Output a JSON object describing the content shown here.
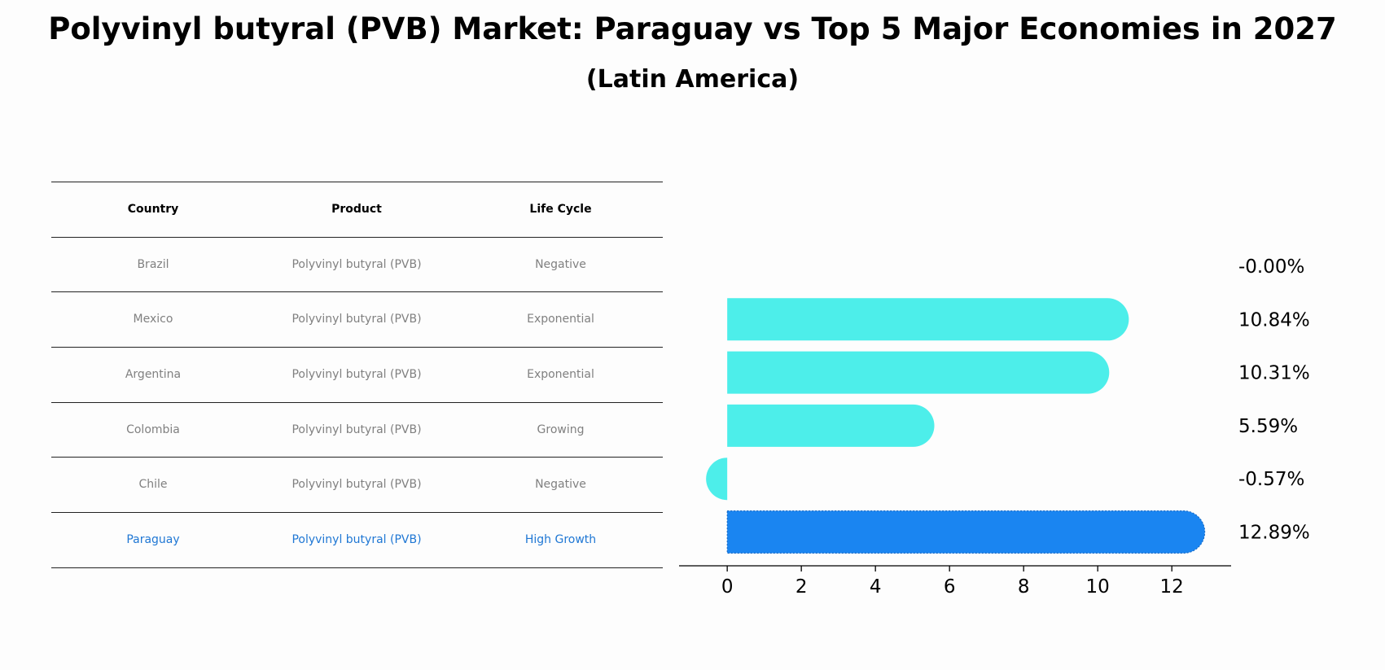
{
  "title": "Polyvinyl butyral (PVB) Market: Paraguay vs Top 5 Major Economies in 2027",
  "subtitle": "(Latin America)",
  "table": {
    "headers": [
      "Country",
      "Product",
      "Life Cycle"
    ],
    "rows": [
      {
        "country": "Brazil",
        "product": "Polyvinyl butyral (PVB)",
        "life_cycle": "Negative"
      },
      {
        "country": "Mexico",
        "product": "Polyvinyl butyral (PVB)",
        "life_cycle": "Exponential"
      },
      {
        "country": "Argentina",
        "product": "Polyvinyl butyral (PVB)",
        "life_cycle": "Exponential"
      },
      {
        "country": "Colombia",
        "product": "Polyvinyl butyral (PVB)",
        "life_cycle": "Growing"
      },
      {
        "country": "Chile",
        "product": "Polyvinyl butyral (PVB)",
        "life_cycle": "Negative"
      },
      {
        "country": "Paraguay",
        "product": "Polyvinyl butyral (PVB)",
        "life_cycle": "High Growth"
      }
    ]
  },
  "colors": {
    "bar": "#4deeea",
    "highlight_bar": "#1a85f1",
    "highlight_text": "#1f77d4",
    "muted_text": "#808080"
  },
  "chart_data": {
    "type": "bar",
    "orientation": "horizontal",
    "categories": [
      "Brazil",
      "Mexico",
      "Argentina",
      "Colombia",
      "Chile",
      "Paraguay"
    ],
    "values": [
      -0.0,
      10.84,
      10.31,
      5.59,
      -0.57,
      12.89
    ],
    "value_labels": [
      "-0.00%",
      "10.84%",
      "10.31%",
      "5.59%",
      "-0.57%",
      "12.89%"
    ],
    "highlight": "Paraguay",
    "xlim": [
      -1.3,
      13.6
    ],
    "xticks": [
      0,
      2,
      4,
      6,
      8,
      10,
      12
    ],
    "xlabel": "",
    "ylabel": ""
  }
}
